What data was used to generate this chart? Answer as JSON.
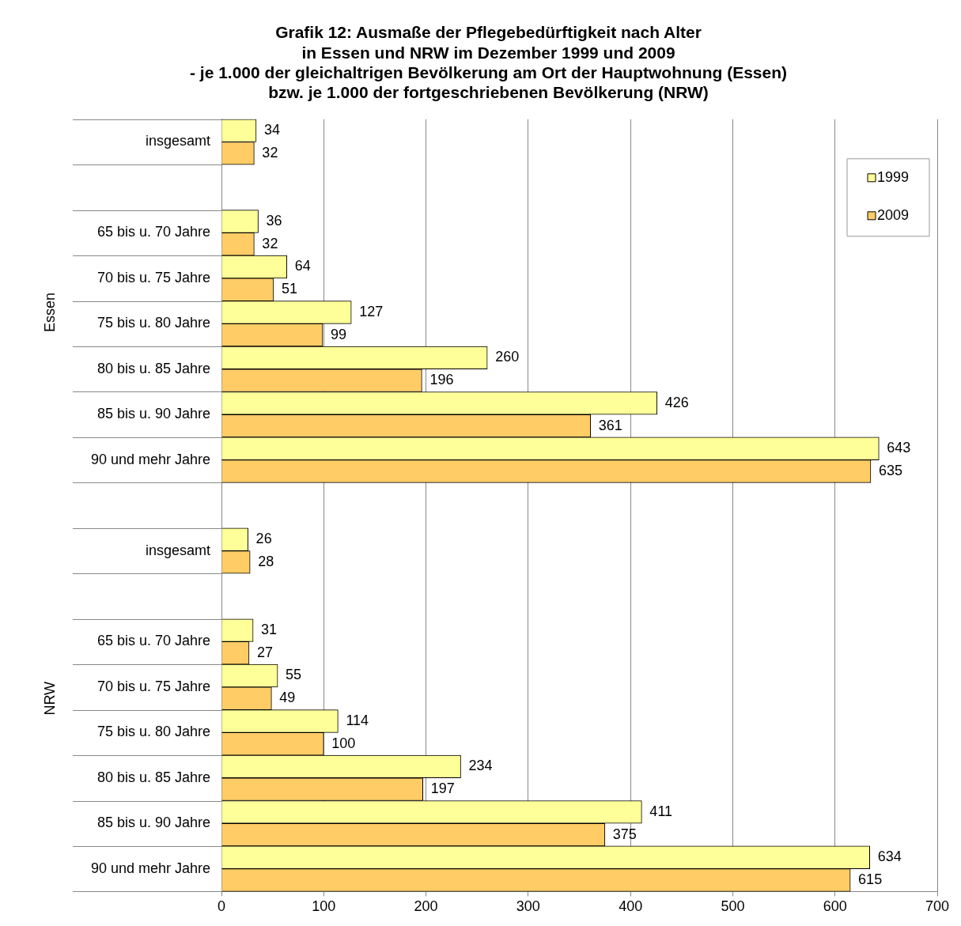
{
  "chart_data": {
    "type": "bar",
    "orientation": "horizontal",
    "title": "Grafik 12: Ausmaße der Pflegebedürftigkeit nach Alter\nin Essen und NRW im Dezember 1999 und 2009",
    "subtitle": "- je 1.000 der gleichaltrigen Bevölkerung am Ort der Hauptwohnung (Essen)\nbzw. je 1.000 der fortgeschriebenen Bevölkerung (NRW)",
    "categories": [
      "insgesamt",
      null,
      "65 bis u. 70 Jahre",
      "70 bis u. 75 Jahre",
      "75 bis u. 80 Jahre",
      "80 bis u. 85 Jahre",
      "85 bis u. 90 Jahre",
      "90 und mehr Jahre",
      null,
      "insgesamt",
      null,
      "65 bis u. 70 Jahre",
      "70 bis u. 75 Jahre",
      "75 bis u. 80 Jahre",
      "80 bis u. 85 Jahre",
      "85 bis u. 90 Jahre",
      "90 und mehr Jahre"
    ],
    "series": [
      {
        "name": "1999",
        "color": "#ffff99",
        "values": [
          34,
          null,
          36,
          64,
          127,
          260,
          426,
          643,
          null,
          26,
          null,
          31,
          55,
          114,
          234,
          411,
          634
        ]
      },
      {
        "name": "2009",
        "color": "#ffcc66",
        "values": [
          32,
          null,
          32,
          51,
          99,
          196,
          361,
          635,
          null,
          28,
          null,
          27,
          49,
          100,
          197,
          375,
          615
        ]
      }
    ],
    "xlim": [
      0,
      700
    ],
    "xticks": [
      0,
      100,
      200,
      300,
      400,
      500,
      600,
      700
    ],
    "grid": "x",
    "legend": "top right",
    "data_labels": true,
    "annotations": [
      "Essen",
      "NRW"
    ]
  }
}
